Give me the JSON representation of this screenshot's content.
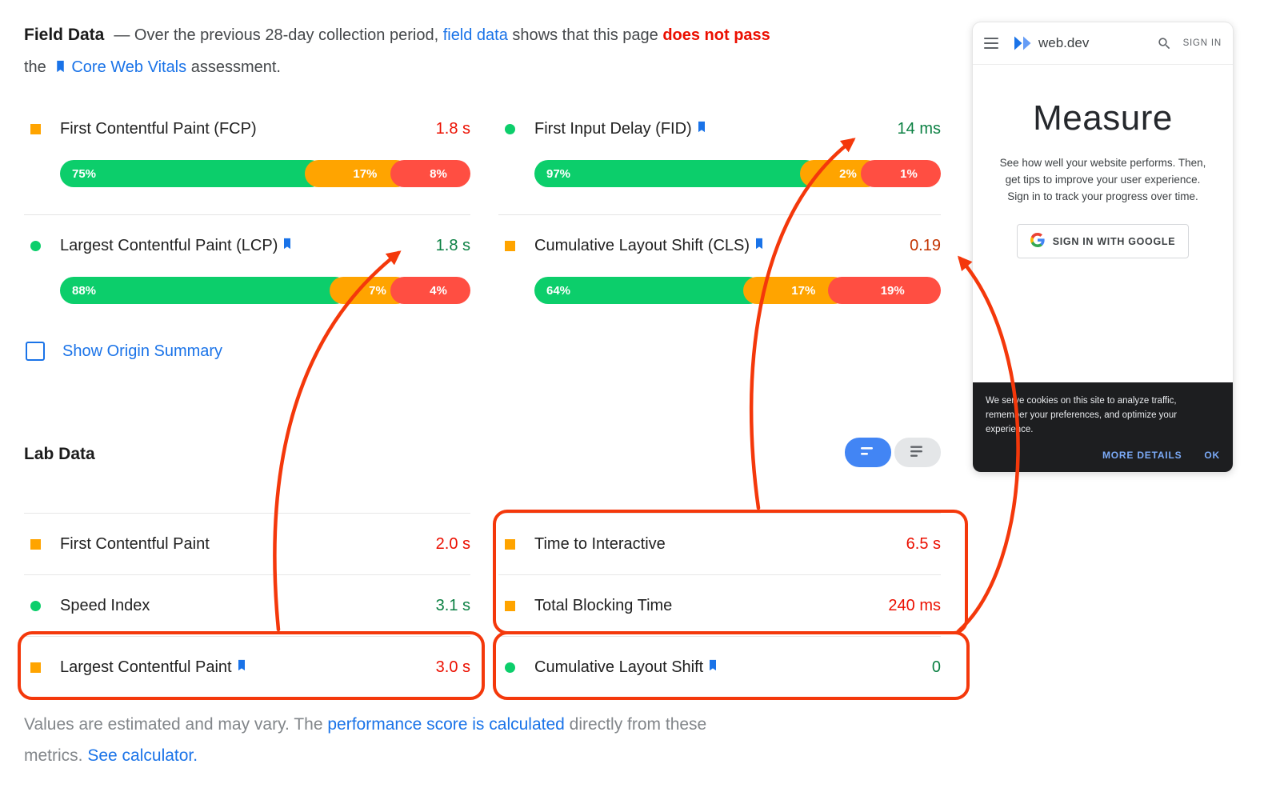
{
  "colors": {
    "bar_green": "#0cce6b",
    "bar_orange": "#ffa400",
    "bar_red": "#ff4e42",
    "green": "#0b8043",
    "red": "#eb0f00",
    "orange": "#c33300",
    "blue": "#1a73e8",
    "annotation": "#f4380b"
  },
  "field": {
    "title": "Field Data",
    "desc": {
      "s1": "— Over the previous 28-day collection period, ",
      "link_field_data": "field data",
      "s2": " shows that this page ",
      "fail": "does not pass",
      "s3": "the ",
      "link_cwv": "Core Web Vitals",
      "s4": " assessment."
    },
    "metrics": [
      {
        "label": "First Contentful Paint (FCP)",
        "value": "1.8 s",
        "value_color": "red",
        "icon": "square",
        "bookmark": false,
        "bar": [
          {
            "label": "75%",
            "pct": 75,
            "color": "bar_green"
          },
          {
            "label": "17%",
            "pct": 17,
            "color": "bar_orange"
          },
          {
            "label": "8%",
            "pct": 8,
            "color": "bar_red"
          }
        ]
      },
      {
        "label": "First Input Delay (FID)",
        "value": "14 ms",
        "value_color": "green",
        "icon": "circle",
        "bookmark": true,
        "bar": [
          {
            "label": "97%",
            "pct": 97,
            "color": "bar_green"
          },
          {
            "label": "2%",
            "pct": 2,
            "color": "bar_orange"
          },
          {
            "label": "1%",
            "pct": 1,
            "color": "bar_red"
          }
        ]
      },
      {
        "label": "Largest Contentful Paint (LCP)",
        "value": "1.8 s",
        "value_color": "green",
        "icon": "circle",
        "bookmark": true,
        "bar": [
          {
            "label": "88%",
            "pct": 88,
            "color": "bar_green"
          },
          {
            "label": "7%",
            "pct": 7,
            "color": "bar_orange"
          },
          {
            "label": "4%",
            "pct": 4,
            "color": "bar_red"
          }
        ]
      },
      {
        "label": "Cumulative Layout Shift (CLS)",
        "value": "0.19",
        "value_color": "orange",
        "icon": "square",
        "bookmark": true,
        "bar": [
          {
            "label": "64%",
            "pct": 64,
            "color": "bar_green"
          },
          {
            "label": "17%",
            "pct": 17,
            "color": "bar_orange"
          },
          {
            "label": "19%",
            "pct": 19,
            "color": "bar_red"
          }
        ]
      }
    ],
    "show_origin_label": "Show Origin Summary"
  },
  "lab": {
    "title": "Lab Data",
    "rows_left": [
      {
        "label": "First Contentful Paint",
        "value": "2.0 s",
        "value_color": "red",
        "icon": "square",
        "bookmark": false
      },
      {
        "label": "Speed Index",
        "value": "3.1 s",
        "value_color": "green",
        "icon": "circle",
        "bookmark": false
      },
      {
        "label": "Largest Contentful Paint",
        "value": "3.0 s",
        "value_color": "red",
        "icon": "square",
        "bookmark": true
      }
    ],
    "rows_right": [
      {
        "label": "Time to Interactive",
        "value": "6.5 s",
        "value_color": "red",
        "icon": "square",
        "bookmark": false
      },
      {
        "label": "Total Blocking Time",
        "value": "240 ms",
        "value_color": "red",
        "icon": "square",
        "bookmark": false
      },
      {
        "label": "Cumulative Layout Shift",
        "value": "0",
        "value_color": "green",
        "icon": "circle",
        "bookmark": true
      }
    ]
  },
  "footer": {
    "s1": "Values are estimated and may vary. The ",
    "link_perf": "performance score is calculated",
    "s2": " directly from these",
    "s3": "metrics. ",
    "link_calc": "See calculator."
  },
  "phone": {
    "brand": "web.dev",
    "sign_in": "SIGN IN",
    "heading": "Measure",
    "body": "See how well your website performs. Then, get tips to improve your user experience. Sign in to track your progress over time.",
    "google_button": "SIGN IN WITH GOOGLE",
    "cookie_text": "We serve cookies on this site to analyze traffic, remember your preferences, and optimize your experience.",
    "more_details": "MORE DETAILS",
    "ok": "OK"
  }
}
